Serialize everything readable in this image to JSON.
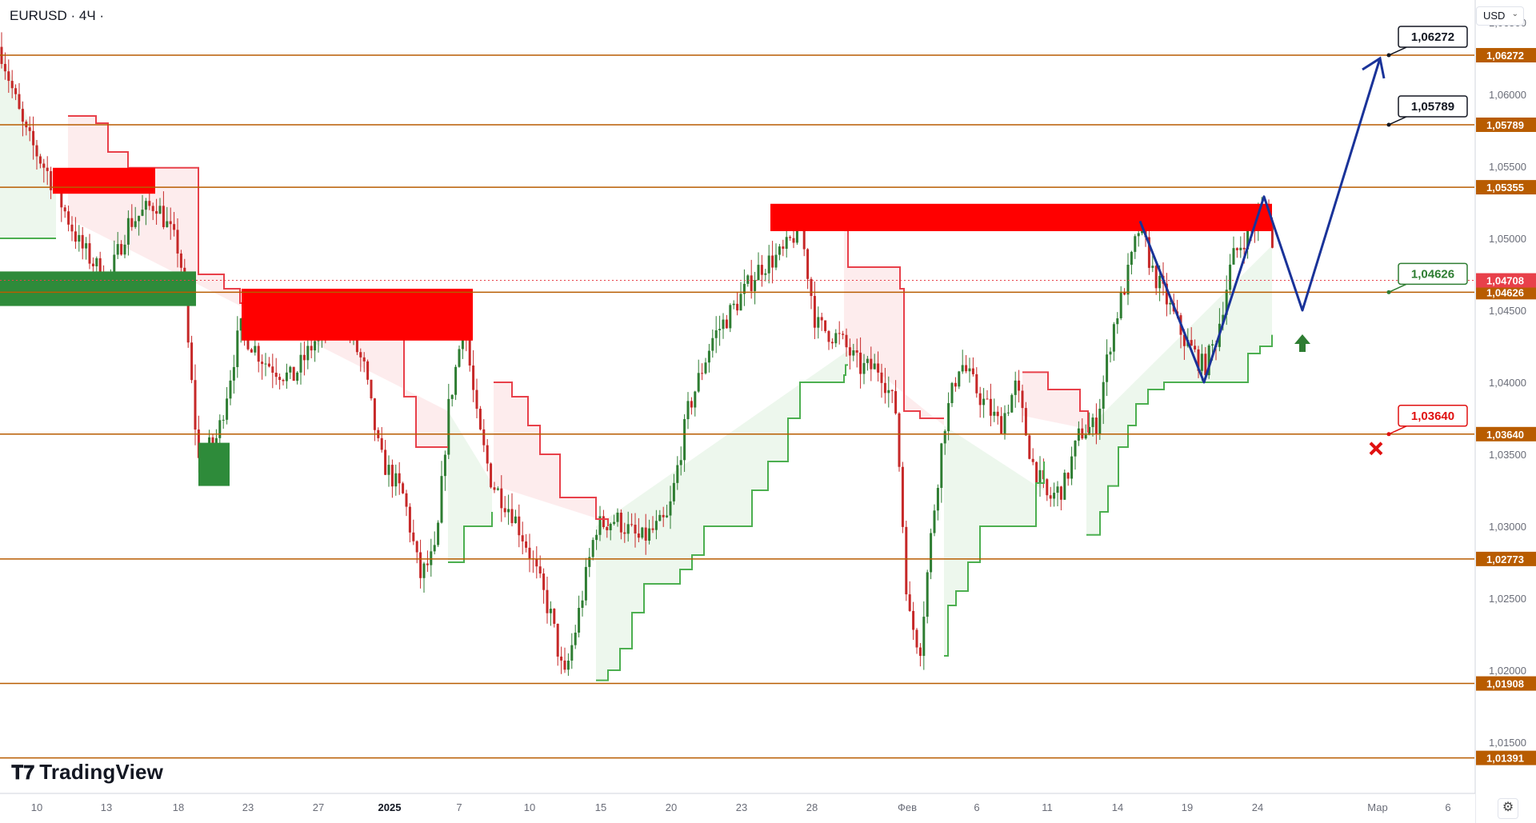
{
  "header": {
    "symbol": "EURUSD · 4Ч ·",
    "currency": "USD"
  },
  "branding": {
    "logo_text": "TradingView"
  },
  "icons": {
    "settings": "gear-icon",
    "currency_dropdown": "chevron-down-icon",
    "target_arrow": "up-arrow-icon",
    "invalidation": "cross-icon"
  },
  "colors": {
    "level_line": "#b85c00",
    "resistance_zone": "#ff0000",
    "support_zone": "#2e8b3a",
    "trend_red": "#e8404a",
    "trend_green": "#4caf50",
    "path": "#1a3399",
    "up_candle": "#2e7d32",
    "down_candle": "#c62828"
  },
  "chart_data": {
    "type": "candlestick",
    "symbol": "EURUSD",
    "timeframe": "4Ч",
    "ylim": [
      1.0118,
      1.0668
    ],
    "y_ticks": [
      "1,06500",
      "1,06000",
      "1,05500",
      "1,05000",
      "1,04500",
      "1,04000",
      "1,03500",
      "1,03000",
      "1,02500",
      "1,02000",
      "1,01500"
    ],
    "x_ticks": [
      "10",
      "13",
      "18",
      "23",
      "27",
      "2025",
      "7",
      "10",
      "15",
      "20",
      "23",
      "28",
      "Фев",
      "6",
      "11",
      "14",
      "19",
      "24",
      "Мар",
      "6"
    ],
    "current_price": "1,04708",
    "levels": [
      "1,06272",
      "1,05789",
      "1,05355",
      "1,04626",
      "1,03640",
      "1,02773",
      "1,01908",
      "1,01391"
    ],
    "callouts": [
      {
        "text": "1,06272",
        "kind": "target"
      },
      {
        "text": "1,05789",
        "kind": "target"
      },
      {
        "text": "1,04626",
        "kind": "entry"
      },
      {
        "text": "1,03640",
        "kind": "stop"
      }
    ],
    "zones": [
      {
        "type": "resistance",
        "from": 1.0531,
        "to": 1.0549
      },
      {
        "type": "resistance",
        "from": 1.0429,
        "to": 1.0465
      },
      {
        "type": "resistance",
        "from": 1.0505,
        "to": 1.0524
      },
      {
        "type": "support",
        "from": 1.0453,
        "to": 1.0477
      },
      {
        "type": "support",
        "from": 1.0328,
        "to": 1.0358
      }
    ],
    "forecast_path": [
      1.0512,
      1.04,
      1.0529,
      1.045,
      1.0625
    ]
  }
}
